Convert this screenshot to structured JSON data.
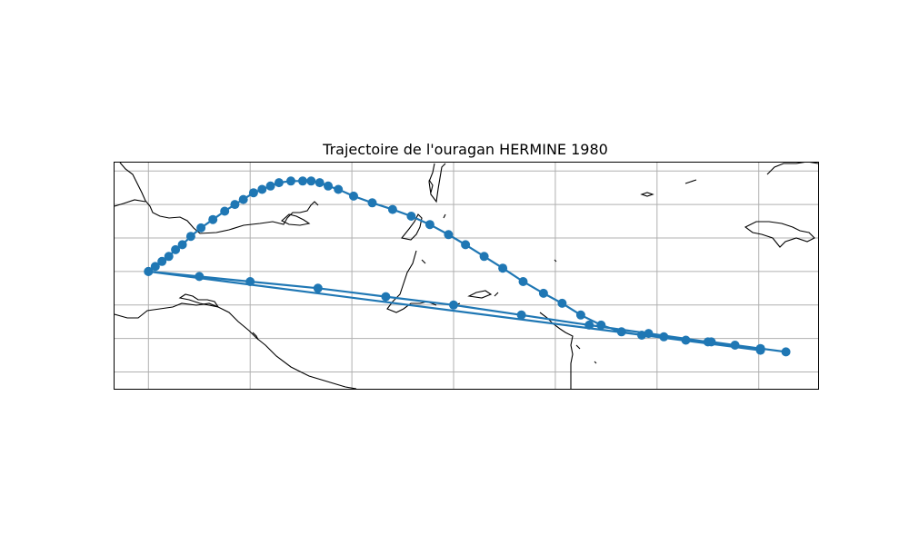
{
  "map": {
    "title": "Trajectoire de l'ouragan HERMINE 1980",
    "track_color": "#1f77b4",
    "grid_color": "#b0b0b0",
    "grid": true,
    "extent": {
      "lon_min": -106,
      "lon_max": -64.5,
      "lat_min": 10,
      "lat_max": 23.5
    },
    "gridlines": {
      "lons": [
        -104,
        -98,
        -92,
        -86,
        -80,
        -74,
        -68
      ],
      "lats": [
        11,
        13,
        15,
        17,
        19,
        21,
        23
      ]
    }
  },
  "chart_data": {
    "type": "line",
    "title": "Trajectoire de l'ouragan HERMINE 1980",
    "series": [
      {
        "lon": [
          -66.4,
          -67.9,
          -69.4,
          -70.8,
          -72.3,
          -73.6,
          -74.9,
          -76.1,
          -77.3,
          -78.5,
          -79.6,
          -80.7,
          -81.9,
          -83.1,
          -84.2,
          -85.3,
          -86.3,
          -87.4,
          -88.5,
          -89.6,
          -90.8,
          -91.9,
          -92.8,
          -93.4,
          -93.9,
          -94.4,
          -94.9,
          -95.6,
          -96.3,
          -96.8,
          -97.3,
          -97.8,
          -98.4,
          -98.9,
          -99.5,
          -100.2,
          -100.9,
          -101.5,
          -102.0,
          -102.4,
          -102.8,
          -103.2,
          -103.6,
          -104.0,
          -67.9,
          -71.0,
          -74.5,
          -78.0,
          -82.0,
          -86.0,
          -90.0,
          -94.0,
          -98.0,
          -101.0,
          -104.0
        ],
        "lat": [
          12.2,
          12.4,
          12.6,
          12.8,
          12.9,
          13.1,
          13.2,
          13.4,
          13.8,
          14.4,
          15.1,
          15.7,
          16.4,
          17.2,
          17.9,
          18.6,
          19.2,
          19.8,
          20.3,
          20.7,
          21.1,
          21.5,
          21.9,
          22.1,
          22.3,
          22.4,
          22.4,
          22.4,
          22.3,
          22.1,
          21.9,
          21.7,
          21.3,
          21.0,
          20.6,
          20.1,
          19.6,
          19.1,
          18.6,
          18.3,
          17.9,
          17.6,
          17.3,
          17.0,
          12.3,
          12.8,
          13.3,
          13.8,
          14.4,
          15.0,
          15.5,
          16.0,
          16.4,
          16.7,
          17.0
        ]
      }
    ]
  }
}
